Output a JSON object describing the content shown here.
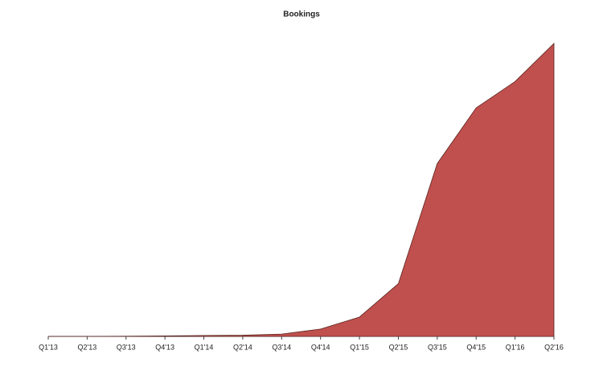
{
  "chart_data": {
    "type": "area",
    "title": "Bookings",
    "categories": [
      "Q1'13",
      "Q2'13",
      "Q3'13",
      "Q4'13",
      "Q1'14",
      "Q2'14",
      "Q3'14",
      "Q4'14",
      "Q1'15",
      "Q2'15",
      "Q3'15",
      "Q4'15",
      "Q1'16",
      "Q2'16"
    ],
    "values": [
      0,
      0,
      0.05,
      0.15,
      0.3,
      0.4,
      0.8,
      2.5,
      6.6,
      18,
      59,
      78,
      87,
      100
    ],
    "color": "#c0504d",
    "ylim": [
      0,
      100
    ]
  }
}
